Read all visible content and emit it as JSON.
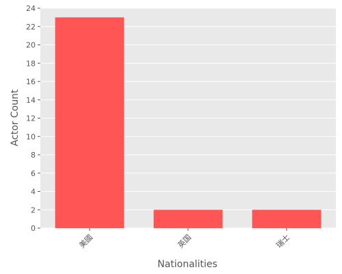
{
  "chart_data": {
    "type": "bar",
    "categories": [
      "美國",
      "英国",
      "瑞士"
    ],
    "values": [
      23,
      2,
      2
    ],
    "title": "",
    "xlabel": "Nationalities",
    "ylabel": "Actor Count",
    "ylim": [
      0,
      24
    ],
    "yticks": [
      0,
      2,
      4,
      6,
      8,
      10,
      12,
      14,
      16,
      18,
      20,
      22,
      24
    ],
    "grid": true,
    "colors": {
      "bar": "#ff5555",
      "plot_bg": "#e9e9e9",
      "grid": "#ffffff",
      "text": "#555555"
    }
  }
}
